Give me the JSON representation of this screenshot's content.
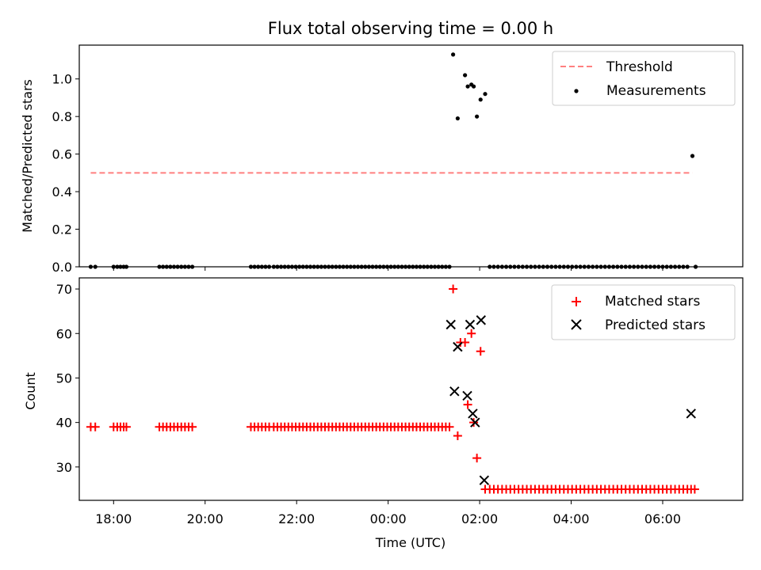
{
  "title": "Flux total observing time = 0.00 h",
  "chart_data": [
    {
      "type": "scatter",
      "ylabel": "Matched/Predicted stars",
      "xlim": [
        -6.75,
        7.75
      ],
      "ylim": [
        0,
        1.18
      ],
      "yticks": [
        0.0,
        0.2,
        0.4,
        0.6,
        0.8,
        1.0
      ],
      "ytick_labels": [
        "0.0",
        "0.2",
        "0.4",
        "0.6",
        "0.8",
        "1.0"
      ],
      "legend_position": "top-right",
      "series": [
        {
          "name": "Threshold",
          "style": "dashed-line",
          "color": "#ff7f7f",
          "x": [
            -6.5,
            6.65
          ],
          "y": [
            0.5,
            0.5
          ]
        },
        {
          "name": "Measurements",
          "style": "dot",
          "color": "#000000",
          "x": [
            -6.5,
            -6.4,
            -6.0,
            -5.92,
            -5.85,
            -5.78,
            -5.72,
            -5.0,
            -4.92,
            -4.84,
            -4.76,
            -4.68,
            -4.6,
            -4.52,
            -4.44,
            -4.36,
            -4.28,
            -3.0,
            -2.92,
            -2.84,
            -2.76,
            -2.68,
            -2.6,
            -2.5,
            -2.42,
            -2.34,
            -2.26,
            -2.18,
            -2.1,
            -2.02,
            -1.94,
            -1.86,
            -1.78,
            -1.7,
            -1.62,
            -1.54,
            -1.46,
            -1.38,
            -1.3,
            -1.22,
            -1.14,
            -1.06,
            -0.98,
            -0.9,
            -0.82,
            -0.74,
            -0.66,
            -0.58,
            -0.5,
            -0.42,
            -0.34,
            -0.26,
            -0.18,
            -0.1,
            -0.02,
            0.06,
            0.14,
            0.22,
            0.3,
            0.38,
            0.46,
            0.54,
            0.62,
            0.7,
            0.78,
            0.86,
            0.94,
            1.02,
            1.1,
            1.18,
            1.26,
            1.34,
            1.42,
            1.52,
            1.68,
            1.74,
            1.82,
            1.87,
            1.94,
            2.02,
            2.12,
            2.22,
            2.31,
            2.4,
            2.49,
            2.58,
            2.67,
            2.76,
            2.85,
            2.94,
            3.03,
            3.12,
            3.21,
            3.3,
            3.39,
            3.48,
            3.57,
            3.66,
            3.75,
            3.84,
            3.93,
            4.02,
            4.11,
            4.2,
            4.29,
            4.38,
            4.47,
            4.56,
            4.65,
            4.74,
            4.83,
            4.92,
            5.01,
            5.1,
            5.19,
            5.28,
            5.37,
            5.46,
            5.55,
            5.64,
            5.73,
            5.82,
            5.91,
            6.0,
            6.09,
            6.18,
            6.27,
            6.36,
            6.45,
            6.54,
            6.65,
            6.72
          ],
          "y": [
            0,
            0,
            0,
            0,
            0,
            0,
            0,
            0,
            0,
            0,
            0,
            0,
            0,
            0,
            0,
            0,
            0,
            0,
            0,
            0,
            0,
            0,
            0,
            0,
            0,
            0,
            0,
            0,
            0,
            0,
            0,
            0,
            0,
            0,
            0,
            0,
            0,
            0,
            0,
            0,
            0,
            0,
            0,
            0,
            0,
            0,
            0,
            0,
            0,
            0,
            0,
            0,
            0,
            0,
            0,
            0,
            0,
            0,
            0,
            0,
            0,
            0,
            0,
            0,
            0,
            0,
            0,
            0,
            0,
            0,
            0,
            0,
            1.13,
            0.79,
            1.02,
            0.96,
            0.97,
            0.96,
            0.8,
            0.89,
            0.92,
            0,
            0,
            0,
            0,
            0,
            0,
            0,
            0,
            0,
            0,
            0,
            0,
            0,
            0,
            0,
            0,
            0,
            0,
            0,
            0,
            0,
            0,
            0,
            0,
            0,
            0,
            0,
            0,
            0,
            0,
            0,
            0,
            0,
            0,
            0,
            0,
            0,
            0,
            0,
            0,
            0,
            0,
            0,
            0,
            0,
            0,
            0,
            0,
            0,
            0.59,
            0
          ]
        }
      ]
    },
    {
      "type": "scatter",
      "xlabel": "Time (UTC)",
      "ylabel": "Count",
      "xlim": [
        -6.75,
        7.75
      ],
      "ylim": [
        22.5,
        72.5
      ],
      "xticks": [
        -6,
        -4,
        -2,
        0,
        2,
        4,
        6
      ],
      "xtick_labels": [
        "18:00",
        "20:00",
        "22:00",
        "00:00",
        "02:00",
        "04:00",
        "06:00"
      ],
      "yticks": [
        30,
        40,
        50,
        60,
        70
      ],
      "ytick_labels": [
        "30",
        "40",
        "50",
        "60",
        "70"
      ],
      "legend_position": "top-right",
      "series": [
        {
          "name": "Matched stars",
          "style": "plus",
          "color": "#ff0000",
          "x": [
            -6.5,
            -6.4,
            -6.0,
            -5.92,
            -5.85,
            -5.78,
            -5.72,
            -5.0,
            -4.92,
            -4.84,
            -4.76,
            -4.68,
            -4.6,
            -4.52,
            -4.44,
            -4.36,
            -4.28,
            -3.0,
            -2.92,
            -2.84,
            -2.76,
            -2.68,
            -2.6,
            -2.5,
            -2.42,
            -2.34,
            -2.26,
            -2.18,
            -2.1,
            -2.02,
            -1.94,
            -1.86,
            -1.78,
            -1.7,
            -1.62,
            -1.54,
            -1.46,
            -1.38,
            -1.3,
            -1.22,
            -1.14,
            -1.06,
            -0.98,
            -0.9,
            -0.82,
            -0.74,
            -0.66,
            -0.58,
            -0.5,
            -0.42,
            -0.34,
            -0.26,
            -0.18,
            -0.1,
            -0.02,
            0.06,
            0.14,
            0.22,
            0.3,
            0.38,
            0.46,
            0.54,
            0.62,
            0.7,
            0.78,
            0.86,
            0.94,
            1.02,
            1.1,
            1.18,
            1.26,
            1.34,
            1.42,
            1.52,
            1.58,
            1.68,
            1.74,
            1.82,
            1.87,
            1.94,
            2.02,
            2.12,
            2.22,
            2.31,
            2.4,
            2.49,
            2.58,
            2.67,
            2.76,
            2.85,
            2.94,
            3.03,
            3.12,
            3.21,
            3.3,
            3.39,
            3.48,
            3.57,
            3.66,
            3.75,
            3.84,
            3.93,
            4.02,
            4.11,
            4.2,
            4.29,
            4.38,
            4.47,
            4.56,
            4.65,
            4.74,
            4.83,
            4.92,
            5.01,
            5.1,
            5.19,
            5.28,
            5.37,
            5.46,
            5.55,
            5.64,
            5.73,
            5.82,
            5.91,
            6.0,
            6.09,
            6.18,
            6.27,
            6.36,
            6.45,
            6.54,
            6.62,
            6.7
          ],
          "y": [
            39,
            39,
            39,
            39,
            39,
            39,
            39,
            39,
            39,
            39,
            39,
            39,
            39,
            39,
            39,
            39,
            39,
            39,
            39,
            39,
            39,
            39,
            39,
            39,
            39,
            39,
            39,
            39,
            39,
            39,
            39,
            39,
            39,
            39,
            39,
            39,
            39,
            39,
            39,
            39,
            39,
            39,
            39,
            39,
            39,
            39,
            39,
            39,
            39,
            39,
            39,
            39,
            39,
            39,
            39,
            39,
            39,
            39,
            39,
            39,
            39,
            39,
            39,
            39,
            39,
            39,
            39,
            39,
            39,
            39,
            39,
            39,
            70,
            37,
            58,
            58,
            44,
            60,
            40,
            32,
            56,
            25,
            25,
            25,
            25,
            25,
            25,
            25,
            25,
            25,
            25,
            25,
            25,
            25,
            25,
            25,
            25,
            25,
            25,
            25,
            25,
            25,
            25,
            25,
            25,
            25,
            25,
            25,
            25,
            25,
            25,
            25,
            25,
            25,
            25,
            25,
            25,
            25,
            25,
            25,
            25,
            25,
            25,
            25,
            25,
            25,
            25,
            25,
            25,
            25,
            25,
            25,
            25
          ]
        },
        {
          "name": "Predicted stars",
          "style": "x",
          "color": "#000000",
          "x": [
            1.37,
            1.45,
            1.52,
            1.73,
            1.79,
            1.85,
            1.9,
            2.03,
            2.1,
            6.62
          ],
          "y": [
            62,
            47,
            57,
            46,
            62,
            42,
            40,
            63,
            27,
            42
          ]
        }
      ]
    }
  ]
}
